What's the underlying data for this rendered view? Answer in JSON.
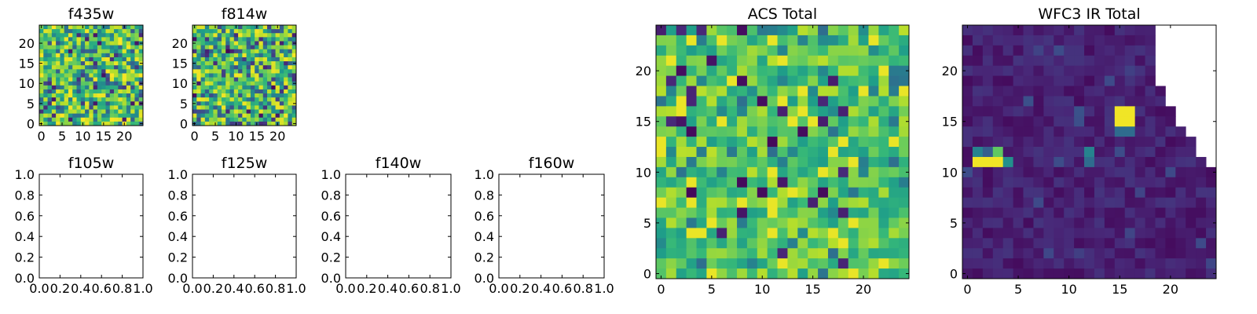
{
  "colormap": "viridis",
  "chart_data": [
    {
      "type": "heatmap",
      "title": "f435w",
      "xlabel": "",
      "ylabel": "",
      "xlim": [
        -0.5,
        24.5
      ],
      "ylim": [
        -0.5,
        24.5
      ],
      "xticks": [
        0,
        5,
        10,
        15,
        20
      ],
      "yticks": [
        0,
        5,
        10,
        15,
        20
      ],
      "tick_labels": [
        "0",
        "5",
        "10",
        "15",
        "20"
      ],
      "cells": "25 x 25 pixel image, random noise",
      "grid": false
    },
    {
      "type": "heatmap",
      "title": "f814w",
      "xlabel": "",
      "ylabel": "",
      "xlim": [
        -0.5,
        24.5
      ],
      "ylim": [
        -0.5,
        24.5
      ],
      "xticks": [
        0,
        5,
        10,
        15,
        20
      ],
      "yticks": [
        0,
        5,
        10,
        15,
        20
      ],
      "tick_labels": [
        "0",
        "5",
        "10",
        "15",
        "20"
      ],
      "cells": "25 x 25 pixel image, random noise",
      "grid": false
    },
    {
      "type": "heatmap",
      "title": "f105w",
      "empty": true,
      "xlim": [
        0,
        1
      ],
      "ylim": [
        0,
        1
      ],
      "tick_labels": [
        "0.0",
        "0.2",
        "0.4",
        "0.6",
        "0.8",
        "1.0"
      ],
      "grid": false
    },
    {
      "type": "heatmap",
      "title": "f125w",
      "empty": true,
      "xlim": [
        0,
        1
      ],
      "ylim": [
        0,
        1
      ],
      "tick_labels": [
        "0.0",
        "0.2",
        "0.4",
        "0.6",
        "0.8",
        "1.0"
      ],
      "grid": false
    },
    {
      "type": "heatmap",
      "title": "f140w",
      "empty": true,
      "xlim": [
        0,
        1
      ],
      "ylim": [
        0,
        1
      ],
      "tick_labels": [
        "0.0",
        "0.2",
        "0.4",
        "0.6",
        "0.8",
        "1.0"
      ],
      "grid": false
    },
    {
      "type": "heatmap",
      "title": "f160w",
      "empty": true,
      "xlim": [
        0,
        1
      ],
      "ylim": [
        0,
        1
      ],
      "tick_labels": [
        "0.0",
        "0.2",
        "0.4",
        "0.6",
        "0.8",
        "1.0"
      ],
      "grid": false
    },
    {
      "type": "heatmap",
      "title": "ACS Total",
      "xlabel": "",
      "ylabel": "",
      "xlim": [
        -0.5,
        24.5
      ],
      "ylim": [
        -0.5,
        24.5
      ],
      "xticks": [
        0,
        5,
        10,
        15,
        20
      ],
      "yticks": [
        0,
        5,
        10,
        15,
        20
      ],
      "tick_labels": [
        "0",
        "5",
        "10",
        "15",
        "20"
      ],
      "cells": "25 x 25 pixel image, mostly mid-high values with bright and dark spots",
      "grid": false
    },
    {
      "type": "heatmap",
      "title": "WFC3 IR Total",
      "xlabel": "",
      "ylabel": "",
      "xlim": [
        -0.5,
        24.5
      ],
      "ylim": [
        -0.5,
        24.5
      ],
      "xticks": [
        0,
        5,
        10,
        15,
        20
      ],
      "yticks": [
        0,
        5,
        10,
        15,
        20
      ],
      "tick_labels": [
        "0",
        "5",
        "10",
        "15",
        "20"
      ],
      "cells": "25 x 25 pixel image, low values; bright sources near (2.5, 11) and (16, 15.5); empty (NaN) triangular region at upper right",
      "bright_sources": [
        {
          "x": [
            1,
            3
          ],
          "y": [
            11,
            11
          ]
        },
        {
          "x": [
            15,
            16
          ],
          "y": [
            15,
            16
          ]
        }
      ],
      "grid": false
    }
  ]
}
